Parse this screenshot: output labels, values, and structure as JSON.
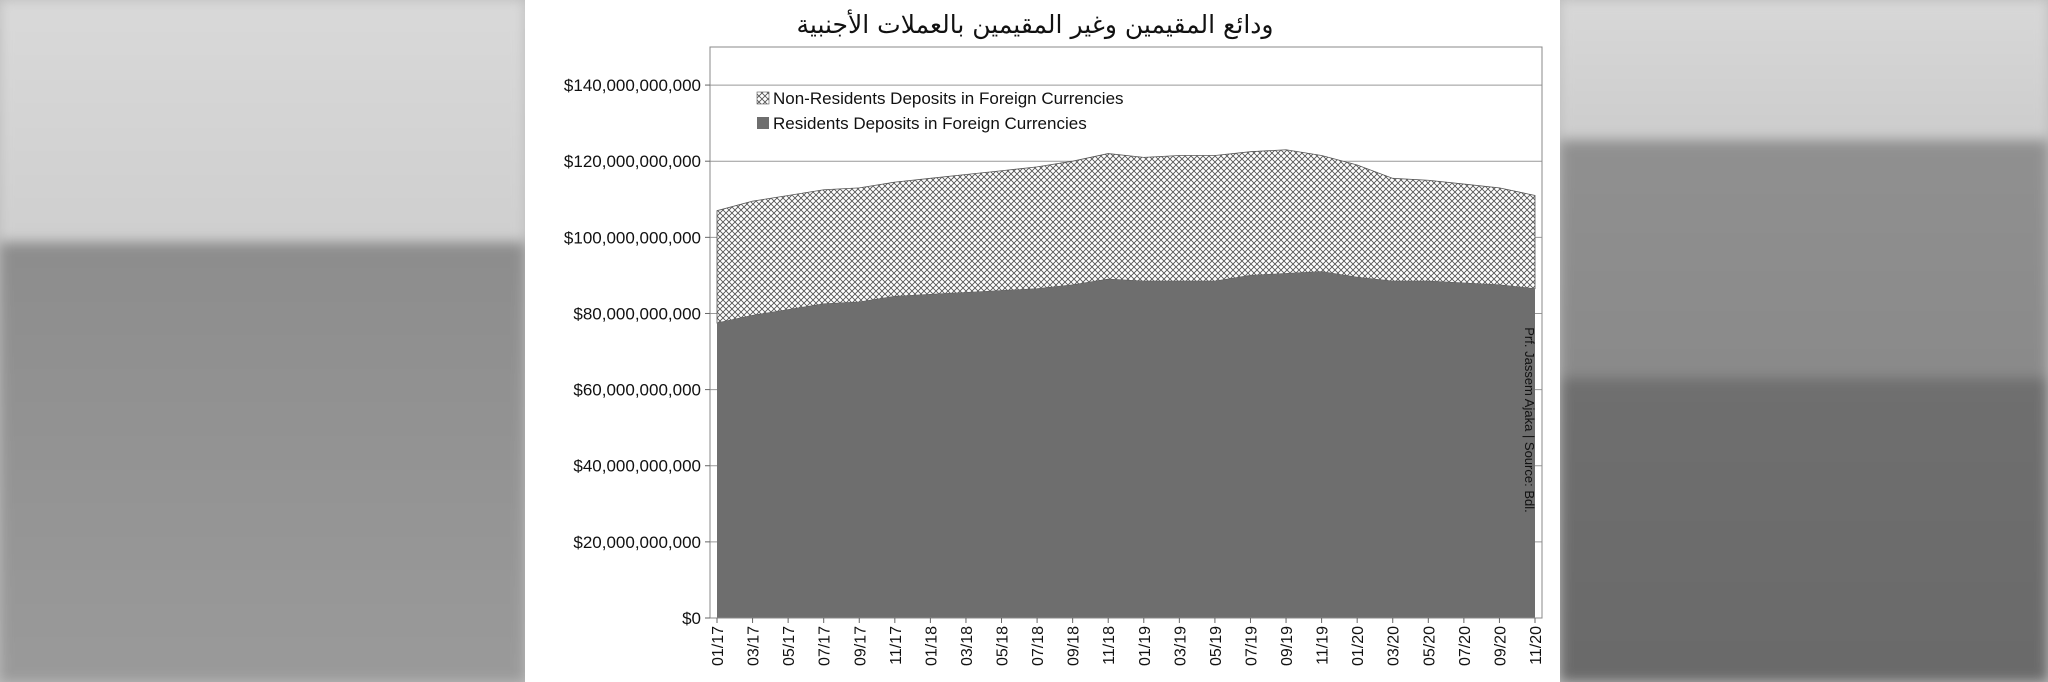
{
  "chart_data": {
    "type": "area",
    "stacked": true,
    "title": "ودائع المقيمين وغير المقيمين بالعملات الأجنبية",
    "side_note": "Prf. Jassem Ajaka | Source: Bdl.",
    "x_labels": [
      "01/17",
      "03/17",
      "05/17",
      "07/17",
      "09/17",
      "11/17",
      "01/18",
      "03/18",
      "05/18",
      "07/18",
      "09/18",
      "11/18",
      "01/19",
      "03/19",
      "05/19",
      "07/19",
      "09/19",
      "11/19",
      "01/20",
      "03/20",
      "05/20",
      "07/20",
      "09/20",
      "11/20"
    ],
    "y_ticks": [
      "$0",
      "$20,000,000,000",
      "$40,000,000,000",
      "$60,000,000,000",
      "$80,000,000,000",
      "$100,000,000,000",
      "$120,000,000,000",
      "$140,000,000,000"
    ],
    "ylim": [
      0,
      150000000000
    ],
    "grid": "horizontal",
    "legend_position": "top-left",
    "series": [
      {
        "name": "Residents Deposits in Foreign Currencies",
        "fill": "#6e6e6e",
        "pattern": "solid",
        "values": [
          77500000000,
          79500000000,
          81000000000,
          82500000000,
          83000000000,
          84500000000,
          85000000000,
          85500000000,
          86000000000,
          86500000000,
          87500000000,
          89000000000,
          88500000000,
          88500000000,
          88500000000,
          90000000000,
          90500000000,
          91000000000,
          89500000000,
          88500000000,
          88500000000,
          88000000000,
          87500000000,
          86500000000
        ]
      },
      {
        "name": "Non-Residents Deposits in Foreign Currencies",
        "fill": "#ffffff",
        "pattern": "crosshatch",
        "values": [
          29500000000,
          30000000000,
          30000000000,
          30000000000,
          30000000000,
          30000000000,
          30500000000,
          31000000000,
          31500000000,
          32000000000,
          32500000000,
          33000000000,
          32500000000,
          33000000000,
          33000000000,
          32500000000,
          32500000000,
          30500000000,
          29500000000,
          27000000000,
          26500000000,
          26000000000,
          25500000000,
          24500000000
        ]
      }
    ]
  }
}
